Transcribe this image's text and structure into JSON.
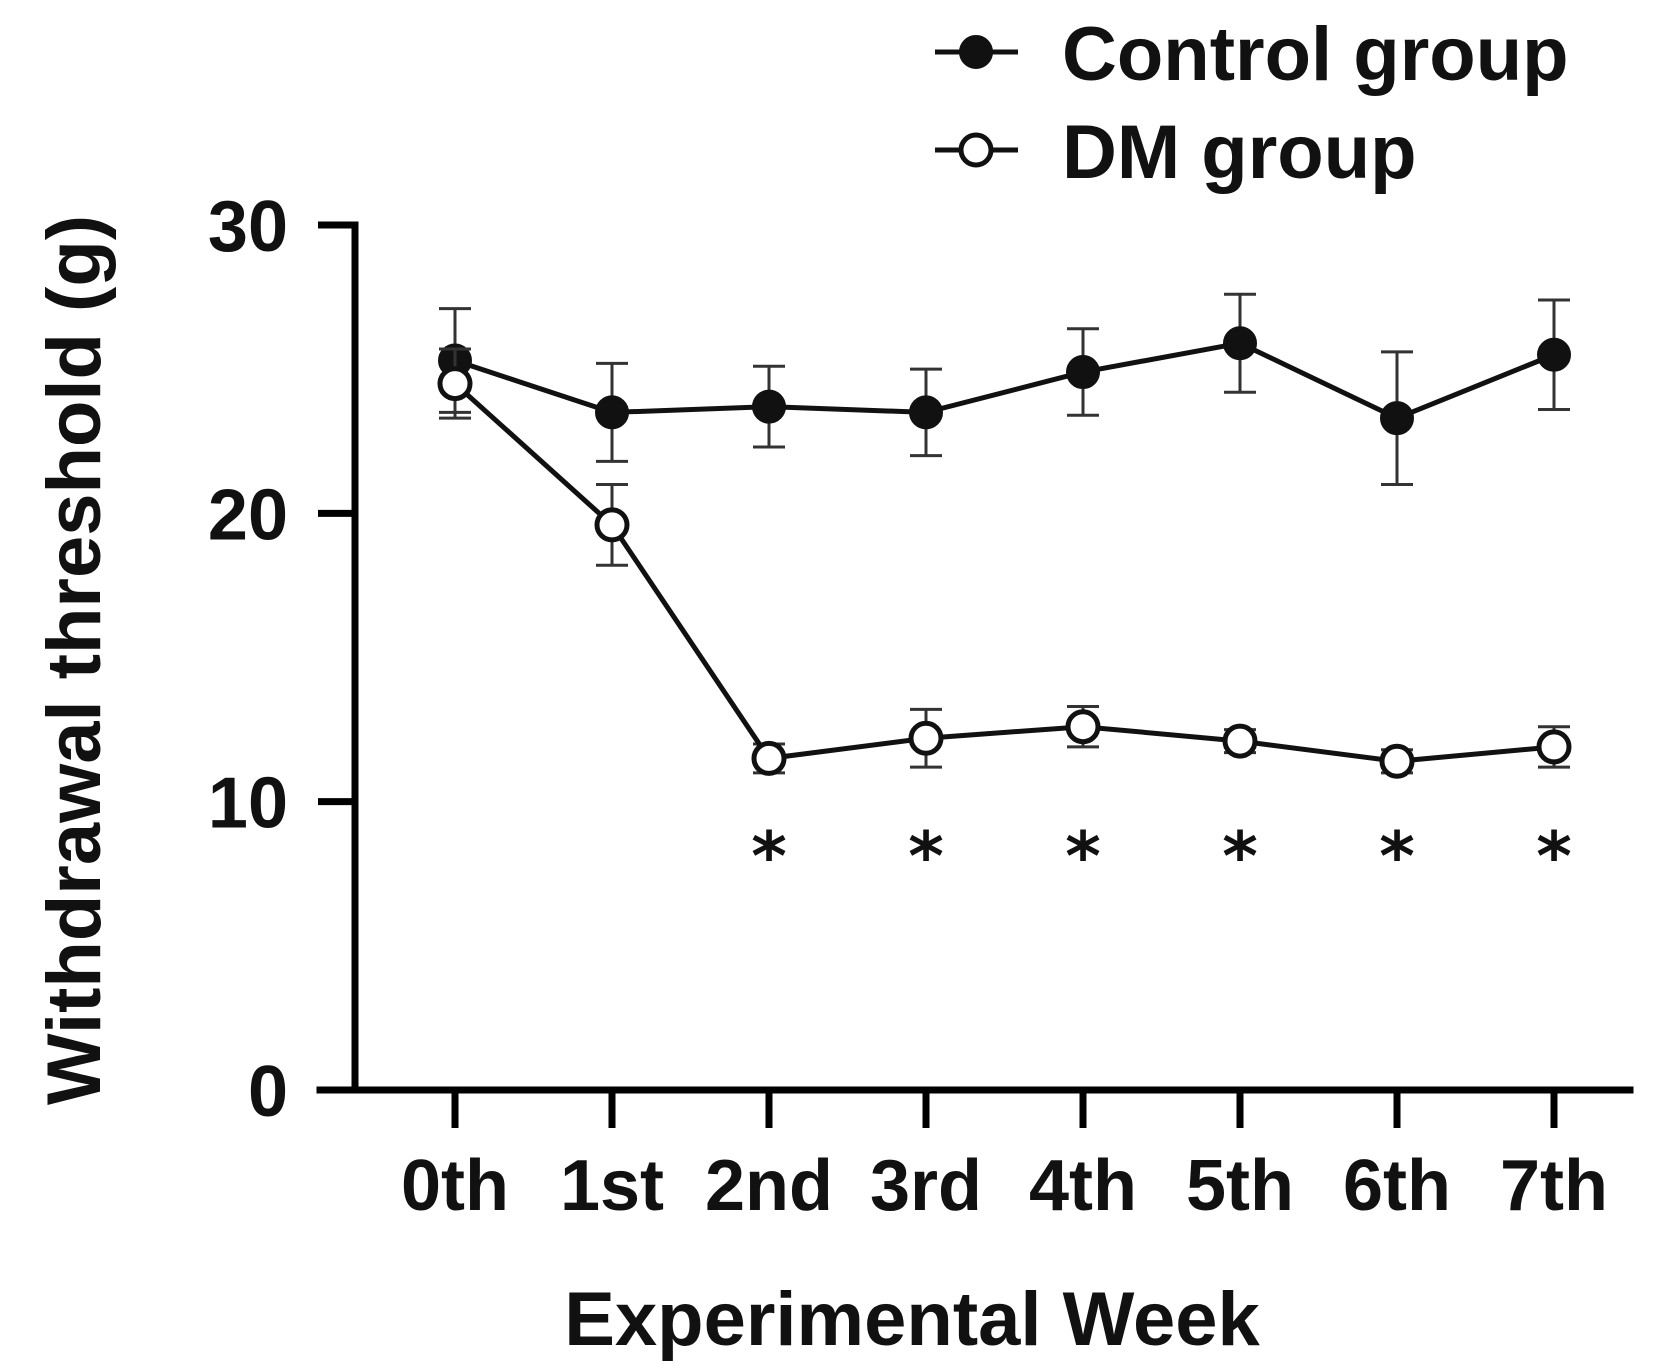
{
  "chart_data": {
    "type": "line",
    "title": "",
    "xlabel": "Experimental Week",
    "ylabel": "Withdrawal threshold (g)",
    "categories": [
      "0th",
      "1st",
      "2nd",
      "3rd",
      "4th",
      "5th",
      "6th",
      "7th"
    ],
    "ylim": [
      0,
      30
    ],
    "yticks": [
      0,
      10,
      20,
      30
    ],
    "grid": false,
    "legend_position": "top-right",
    "series": [
      {
        "name": "Control group",
        "marker": "filled-circle",
        "color": "#111111",
        "values": [
          25.3,
          23.5,
          23.7,
          23.5,
          24.9,
          25.9,
          23.3,
          25.5
        ],
        "errors": [
          1.8,
          1.7,
          1.4,
          1.5,
          1.5,
          1.7,
          2.3,
          1.9
        ]
      },
      {
        "name": "DM group",
        "marker": "open-circle",
        "color": "#111111",
        "values": [
          24.5,
          19.6,
          11.5,
          12.2,
          12.6,
          12.1,
          11.4,
          11.9
        ],
        "errors": [
          1.2,
          1.4,
          0.5,
          1.0,
          0.7,
          0.4,
          0.4,
          0.7
        ]
      }
    ],
    "annotations": [
      {
        "text": "*",
        "category": "2nd"
      },
      {
        "text": "*",
        "category": "3rd"
      },
      {
        "text": "*",
        "category": "4th"
      },
      {
        "text": "*",
        "category": "5th"
      },
      {
        "text": "*",
        "category": "6th"
      },
      {
        "text": "*",
        "category": "7th"
      }
    ]
  }
}
